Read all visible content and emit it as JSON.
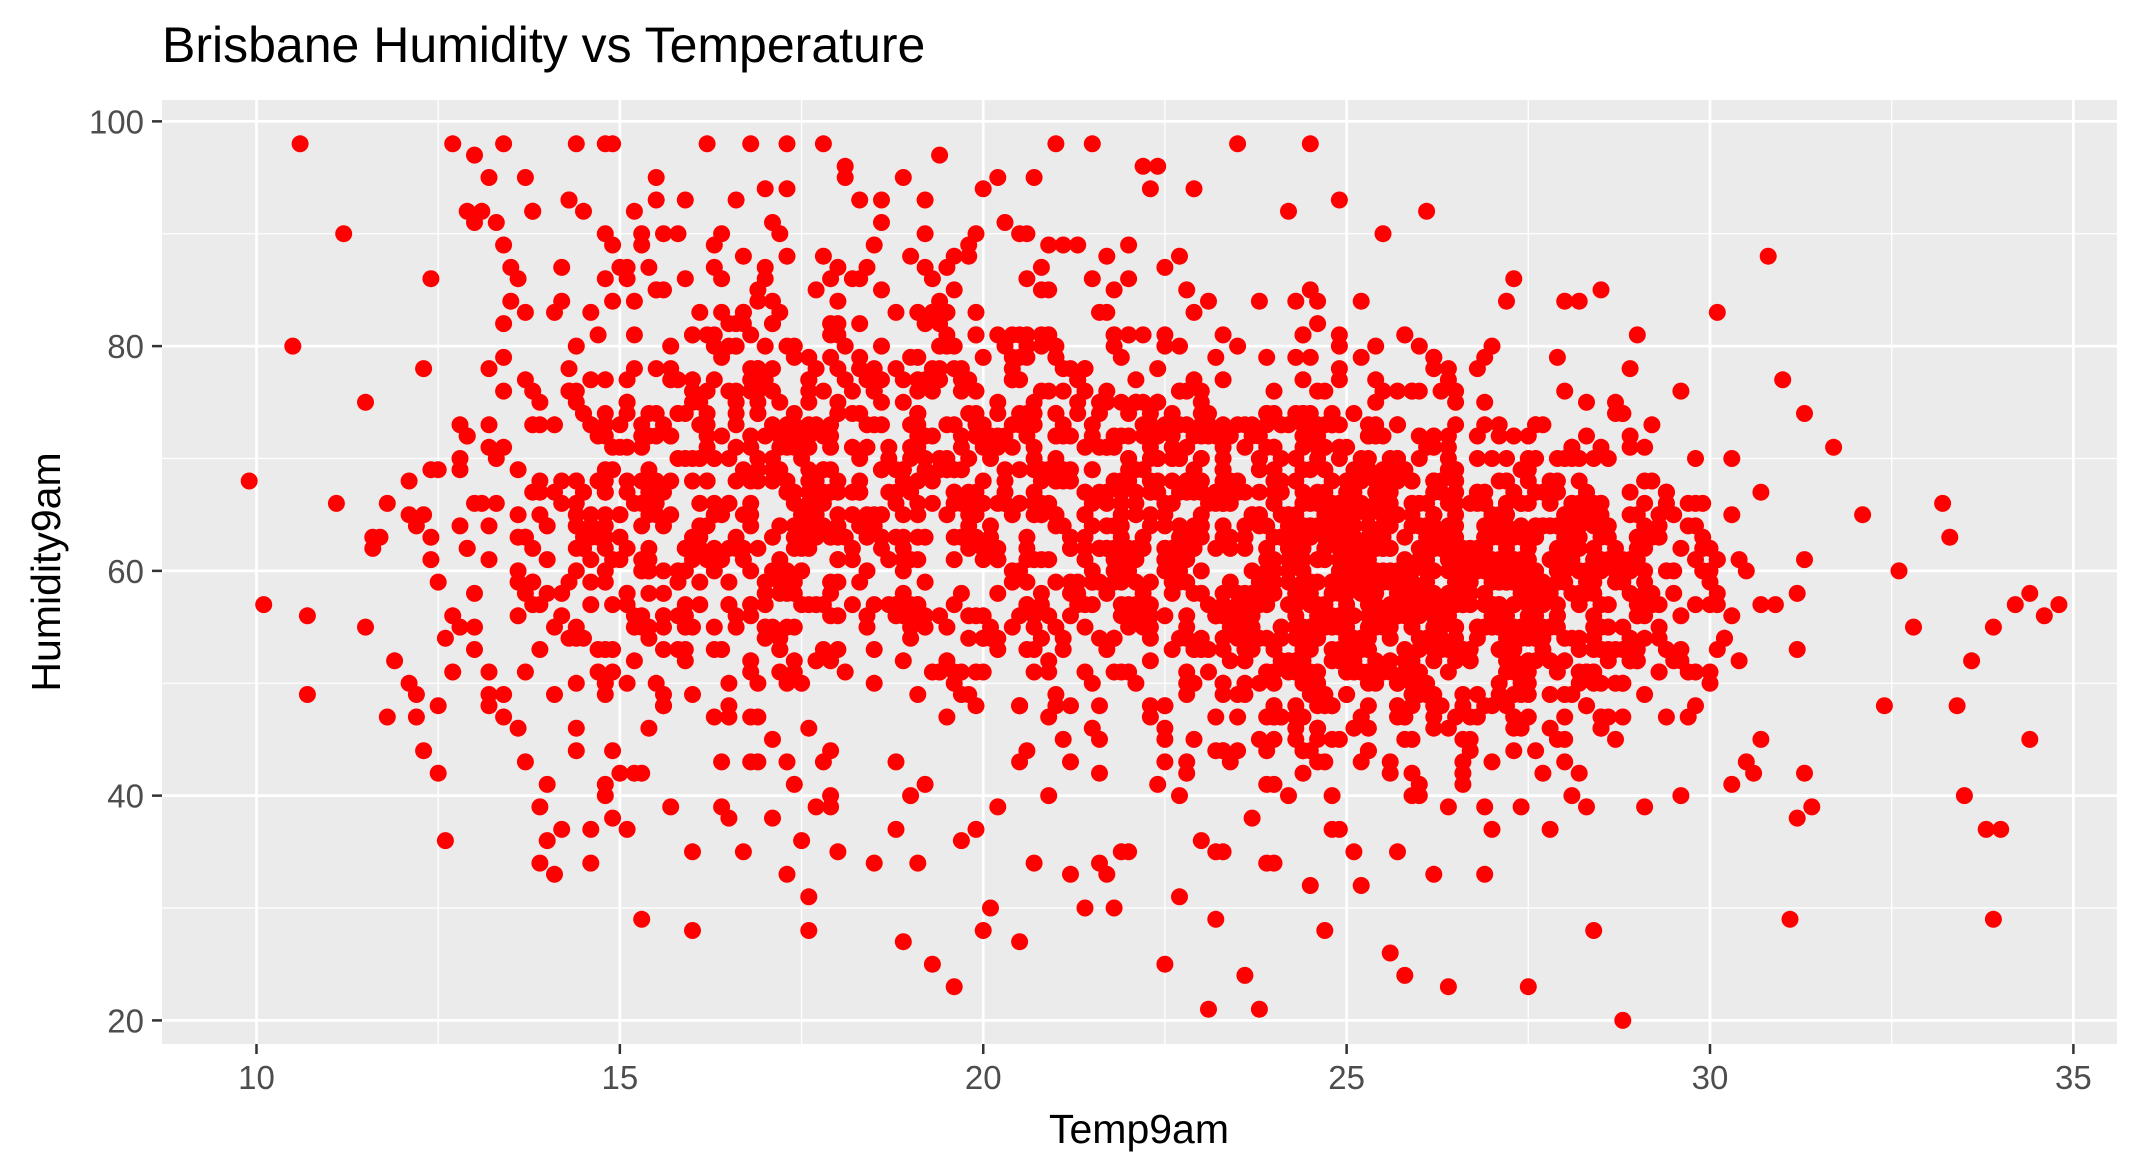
{
  "chart_data": {
    "type": "scatter",
    "title": "Brisbane Humidity vs Temperature",
    "xlabel": "Temp9am",
    "ylabel": "Humidity9am",
    "xlim": [
      8.7,
      35.6
    ],
    "ylim": [
      17.9,
      101.9
    ],
    "x_ticks": [
      10,
      15,
      20,
      25,
      30,
      35
    ],
    "y_ticks": [
      20,
      40,
      60,
      80,
      100
    ],
    "x_tick_labels": [
      "10",
      "15",
      "20",
      "25",
      "30",
      "35"
    ],
    "y_tick_labels": [
      "20",
      "40",
      "60",
      "80",
      "100"
    ],
    "grid": true,
    "legend": "none",
    "colors": {
      "point": "#ff0000",
      "panel": "#ebebeb",
      "grid": "#ffffff",
      "tick": "#333333"
    },
    "series": [
      {
        "points": [
          [
            9.9,
            68
          ],
          [
            10.1,
            57
          ],
          [
            10.5,
            80
          ],
          [
            10.6,
            98
          ],
          [
            10.7,
            56
          ],
          [
            10.7,
            49
          ],
          [
            11.1,
            66
          ],
          [
            11.2,
            90
          ],
          [
            11.5,
            75
          ],
          [
            11.5,
            55
          ],
          [
            11.6,
            63
          ],
          [
            11.6,
            62
          ],
          [
            11.7,
            63
          ],
          [
            11.8,
            47
          ],
          [
            11.8,
            66
          ],
          [
            11.9,
            52
          ],
          [
            12.1,
            68
          ],
          [
            12.1,
            65
          ],
          [
            12.1,
            50
          ],
          [
            12.2,
            49
          ],
          [
            12.2,
            47
          ],
          [
            12.3,
            44
          ],
          [
            12.3,
            65
          ],
          [
            12.4,
            61
          ],
          [
            12.4,
            86
          ],
          [
            12.5,
            42
          ],
          [
            12.5,
            48
          ],
          [
            12.5,
            69
          ],
          [
            12.6,
            36
          ],
          [
            12.7,
            98
          ],
          [
            12.7,
            51
          ],
          [
            12.8,
            64
          ],
          [
            12.8,
            73
          ],
          [
            12.9,
            92
          ],
          [
            12.9,
            62
          ],
          [
            13.0,
            91
          ],
          [
            13.0,
            58
          ],
          [
            13.0,
            53
          ],
          [
            13.1,
            92
          ],
          [
            13.2,
            95
          ],
          [
            13.2,
            49
          ],
          [
            13.3,
            70
          ],
          [
            13.3,
            91
          ],
          [
            13.4,
            98
          ],
          [
            13.4,
            89
          ],
          [
            13.4,
            47
          ],
          [
            13.5,
            87
          ],
          [
            13.6,
            65
          ],
          [
            13.7,
            77
          ],
          [
            13.7,
            95
          ],
          [
            13.7,
            43
          ],
          [
            13.8,
            92
          ],
          [
            13.9,
            39
          ],
          [
            13.9,
            34
          ],
          [
            14.0,
            36
          ],
          [
            14.1,
            33
          ],
          [
            14.2,
            84
          ],
          [
            14.2,
            87
          ],
          [
            14.3,
            93
          ],
          [
            14.4,
            98
          ],
          [
            14.4,
            44
          ],
          [
            14.5,
            92
          ],
          [
            14.6,
            34
          ],
          [
            14.8,
            90
          ],
          [
            14.8,
            40
          ],
          [
            14.9,
            98
          ],
          [
            14.9,
            38
          ],
          [
            15.0,
            42
          ],
          [
            15.1,
            37
          ],
          [
            15.2,
            92
          ],
          [
            15.3,
            29
          ],
          [
            15.3,
            89
          ],
          [
            15.5,
            95
          ],
          [
            15.7,
            39
          ],
          [
            15.9,
            93
          ],
          [
            16.0,
            35
          ],
          [
            16.0,
            28
          ],
          [
            16.2,
            98
          ],
          [
            16.3,
            87
          ],
          [
            16.4,
            90
          ],
          [
            16.5,
            38
          ],
          [
            16.6,
            93
          ],
          [
            16.7,
            35
          ],
          [
            16.8,
            98
          ],
          [
            16.9,
            43
          ],
          [
            17.0,
            94
          ],
          [
            17.1,
            38
          ],
          [
            17.3,
            98
          ],
          [
            17.3,
            43
          ],
          [
            17.5,
            36
          ],
          [
            17.6,
            31
          ],
          [
            17.6,
            28
          ],
          [
            17.8,
            98
          ],
          [
            17.9,
            39
          ],
          [
            18.0,
            35
          ],
          [
            18.1,
            95
          ],
          [
            18.3,
            93
          ],
          [
            18.5,
            34
          ],
          [
            18.6,
            93
          ],
          [
            18.8,
            43
          ],
          [
            18.9,
            27
          ],
          [
            19.0,
            40
          ],
          [
            19.1,
            34
          ],
          [
            19.3,
            25
          ],
          [
            19.4,
            97
          ],
          [
            19.6,
            23
          ],
          [
            19.7,
            36
          ],
          [
            19.9,
            37
          ],
          [
            20.0,
            28
          ],
          [
            20.1,
            30
          ],
          [
            20.2,
            39
          ],
          [
            20.5,
            27
          ],
          [
            20.7,
            95
          ],
          [
            20.9,
            40
          ],
          [
            21.0,
            98
          ],
          [
            21.2,
            33
          ],
          [
            21.4,
            30
          ],
          [
            21.5,
            98
          ],
          [
            21.6,
            34
          ],
          [
            21.8,
            30
          ],
          [
            21.9,
            35
          ],
          [
            22.0,
            35
          ],
          [
            22.2,
            96
          ],
          [
            22.4,
            96
          ],
          [
            22.5,
            25
          ],
          [
            22.7,
            31
          ],
          [
            22.8,
            42
          ],
          [
            22.9,
            94
          ],
          [
            23.0,
            36
          ],
          [
            23.1,
            21
          ],
          [
            23.2,
            35
          ],
          [
            23.2,
            29
          ],
          [
            23.5,
            98
          ],
          [
            23.6,
            24
          ],
          [
            23.7,
            38
          ],
          [
            23.8,
            21
          ],
          [
            24.0,
            41
          ],
          [
            24.0,
            34
          ],
          [
            24.2,
            92
          ],
          [
            24.5,
            32
          ],
          [
            24.5,
            98
          ],
          [
            24.7,
            28
          ],
          [
            24.9,
            93
          ],
          [
            25.1,
            35
          ],
          [
            25.2,
            32
          ],
          [
            25.5,
            90
          ],
          [
            25.6,
            26
          ],
          [
            25.8,
            24
          ],
          [
            25.9,
            40
          ],
          [
            26.0,
            40
          ],
          [
            26.1,
            92
          ],
          [
            26.2,
            33
          ],
          [
            26.4,
            23
          ],
          [
            26.9,
            33
          ],
          [
            27.0,
            37
          ],
          [
            27.3,
            86
          ],
          [
            27.4,
            39
          ],
          [
            27.5,
            23
          ],
          [
            27.8,
            37
          ],
          [
            28.0,
            84
          ],
          [
            28.1,
            40
          ],
          [
            28.2,
            84
          ],
          [
            28.4,
            28
          ],
          [
            28.8,
            20
          ],
          [
            29.0,
            81
          ],
          [
            29.1,
            39
          ],
          [
            30.1,
            83
          ],
          [
            30.5,
            43
          ],
          [
            31.0,
            77
          ],
          [
            31.1,
            29
          ],
          [
            31.2,
            38
          ],
          [
            31.3,
            74
          ],
          [
            31.4,
            39
          ],
          [
            31.7,
            71
          ],
          [
            32.1,
            65
          ],
          [
            32.4,
            48
          ],
          [
            32.6,
            60
          ],
          [
            32.8,
            55
          ],
          [
            33.2,
            66
          ],
          [
            33.3,
            63
          ],
          [
            33.4,
            48
          ],
          [
            33.5,
            40
          ],
          [
            33.6,
            52
          ],
          [
            33.8,
            37
          ],
          [
            33.9,
            55
          ],
          [
            34.0,
            37
          ],
          [
            34.2,
            57
          ],
          [
            34.4,
            58
          ],
          [
            34.6,
            56
          ],
          [
            34.8,
            57
          ],
          [
            33.9,
            29
          ],
          [
            34.4,
            45
          ]
        ]
      }
    ]
  }
}
